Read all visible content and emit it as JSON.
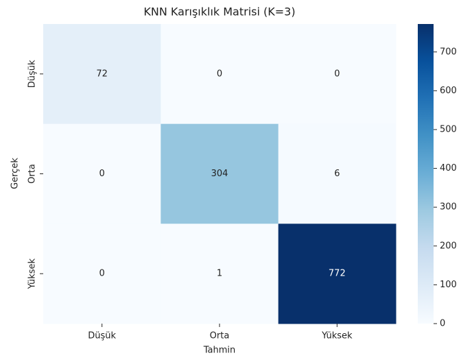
{
  "chart_data": {
    "type": "heatmap",
    "title": "KNN Karışıklık Matrisi (K=3)",
    "x_categories": [
      "Düşük",
      "Orta",
      "Yüksek"
    ],
    "y_categories": [
      "Düşük",
      "Orta",
      "Yüksek"
    ],
    "values": [
      [
        72,
        0,
        0
      ],
      [
        0,
        304,
        6
      ],
      [
        0,
        1,
        772
      ]
    ],
    "xlabel": "Tahmin",
    "ylabel": "Gerçek",
    "colormap": "Blues",
    "zlim": [
      0,
      772
    ],
    "zticks": [
      0,
      100,
      200,
      300,
      400,
      500,
      600,
      700
    ]
  }
}
